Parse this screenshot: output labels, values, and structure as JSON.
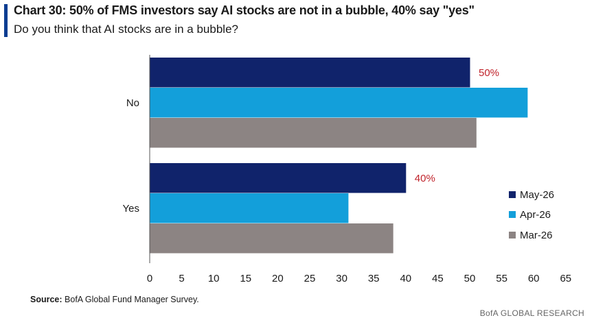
{
  "header": {
    "title": "Chart 30: 50% of FMS investors say AI stocks are not in a bubble, 40% say \"yes\"",
    "subtitle": "Do you think that AI stocks are in a bubble?",
    "accent_color": "#0a3d91"
  },
  "footer": {
    "source_label": "Source:",
    "source_text": "BofA Global Fund Manager Survey.",
    "brand": "BofA GLOBAL RESEARCH"
  },
  "chart_data": {
    "type": "bar",
    "orientation": "horizontal",
    "categories": [
      "No",
      "Yes"
    ],
    "series": [
      {
        "name": "May-26",
        "color": "#10236b",
        "values": [
          50,
          40
        ]
      },
      {
        "name": "Apr-26",
        "color": "#139fda",
        "values": [
          59,
          31
        ]
      },
      {
        "name": "Mar-26",
        "color": "#8c8483",
        "values": [
          51,
          38
        ]
      }
    ],
    "data_labels": [
      {
        "category": "No",
        "series": "May-26",
        "text": "50%"
      },
      {
        "category": "Yes",
        "series": "May-26",
        "text": "40%"
      }
    ],
    "data_label_color": "#c0232b",
    "xlim": [
      0,
      65
    ],
    "xticks": [
      0,
      5,
      10,
      15,
      20,
      25,
      30,
      35,
      40,
      45,
      50,
      55,
      60,
      65
    ],
    "legend_position": "right"
  }
}
